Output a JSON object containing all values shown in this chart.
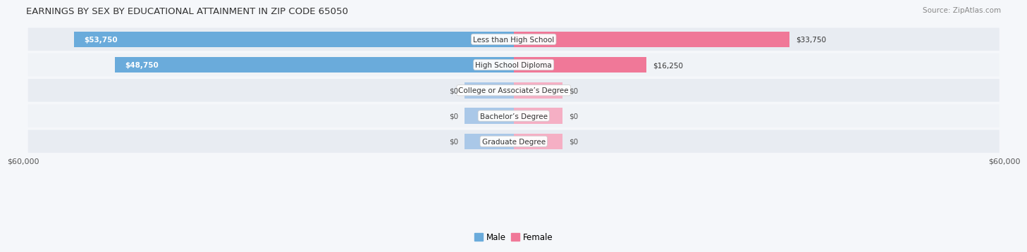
{
  "title": "EARNINGS BY SEX BY EDUCATIONAL ATTAINMENT IN ZIP CODE 65050",
  "source": "Source: ZipAtlas.com",
  "categories": [
    "Less than High School",
    "High School Diploma",
    "College or Associate’s Degree",
    "Bachelor’s Degree",
    "Graduate Degree"
  ],
  "male_values": [
    53750,
    48750,
    0,
    0,
    0
  ],
  "female_values": [
    33750,
    16250,
    0,
    0,
    0
  ],
  "male_color": "#6aabdb",
  "female_color": "#f07898",
  "male_color_light": "#aac8e8",
  "female_color_light": "#f5afc4",
  "row_bg_color": "#e8ecf2",
  "row_bg_color2": "#f0f3f7",
  "fig_bg_color": "#f5f7fa",
  "max_value": 60000,
  "stub_value": 6000,
  "xlabel_left": "$60,000",
  "xlabel_right": "$60,000",
  "title_fontsize": 9.5,
  "source_fontsize": 7.5,
  "label_fontsize": 7.5,
  "tick_fontsize": 8,
  "value_fontsize": 7.5
}
